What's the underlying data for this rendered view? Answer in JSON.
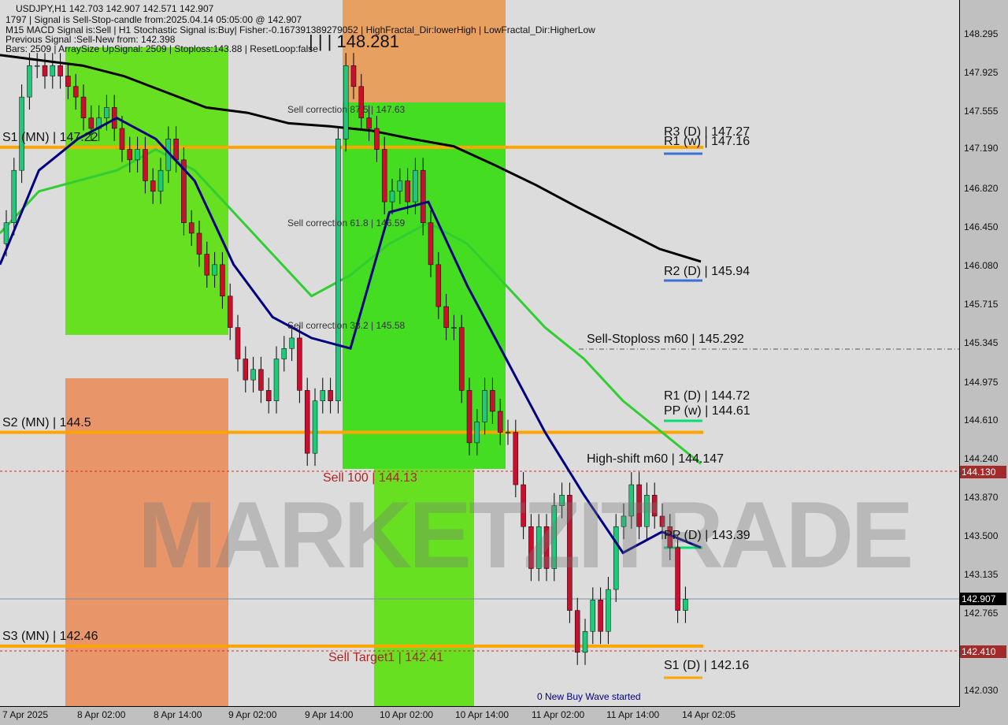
{
  "header": {
    "line1": "USDJPY,H1  142.703 142.907 142.571 142.907",
    "line2": "1797 | Signal is Sell-Stop-candle from:2025.04.14 05:05:00 @ 142.907",
    "line3": "M15 MACD Signal is:Sell | H1 Stochastic Signal is:Buy| Fisher:-0.167391389279052 | HighFractal_Dir:lowerHigh | LowFractal_Dir:HigherLow",
    "line4": "Previous Signal :Sell-New from: 142.398",
    "line5": "Bars: 2509 | ArraySize UpSignal: 2509 | Stoploss:143.88 | ResetLoop:false"
  },
  "watermark": "MARKETZITRADE",
  "labels": {
    "high": "| | | 148.281",
    "s1mn": "S1 (MN) | 147.22",
    "s2mn": "S2 (MN) | 144.5",
    "s3mn": "S3 (MN) | 142.46",
    "sc875": "Sell correction 87.5 | 147.63",
    "sc618": "Sell correction 61.8 | 146.59",
    "sc382": "Sell correction 38.2 | 145.58",
    "r3d": "R3 (D) | 147.27",
    "r1w": "R1 (w) | 147.16",
    "r2d": "R2 (D) | 145.94",
    "stoploss": "Sell-Stoploss m60 | 145.292",
    "r1d": "R1 (D) | 144.72",
    "ppw": "PP (w) | 144.61",
    "highshift": "High-shift m60 | 144.147",
    "sell100": "Sell 100 | 144.13",
    "ppd": "PP (D) | 143.39",
    "target": "Sell Target1 | 142.41",
    "s1d": "S1 (D) | 142.16",
    "newwave": "0 New Buy Wave started"
  },
  "y_axis": [
    "148.295",
    "147.925",
    "147.555",
    "147.190",
    "146.820",
    "146.450",
    "146.080",
    "145.715",
    "145.345",
    "144.975",
    "144.610",
    "144.240",
    "143.870",
    "143.500",
    "143.135",
    "142.765",
    "142.030"
  ],
  "price_tags": {
    "sell": "144.130",
    "current": "142.907",
    "target": "142.410"
  },
  "x_axis": [
    "7 Apr 2025",
    "8 Apr 02:00",
    "8 Apr 14:00",
    "9 Apr 02:00",
    "9 Apr 14:00",
    "10 Apr 02:00",
    "10 Apr 14:00",
    "11 Apr 02:00",
    "11 Apr 14:00",
    "14 Apr 02:05"
  ],
  "colors": {
    "bull": "#1ec97a",
    "bear": "#c8102e",
    "support": "#ffa500",
    "ma_long": "#000000",
    "ma_fast": "#000080",
    "ma_mid": "#32cd32"
  },
  "chart_data": {
    "type": "candlestick",
    "symbol": "USDJPY",
    "timeframe": "H1",
    "ylim": [
      142.03,
      148.295
    ],
    "closes": [
      146.5,
      147.0,
      147.7,
      148.0,
      148.0,
      147.9,
      148.0,
      147.9,
      147.8,
      147.7,
      147.5,
      147.4,
      147.5,
      147.6,
      147.4,
      147.2,
      147.1,
      147.2,
      146.9,
      146.8,
      147.0,
      147.3,
      147.1,
      146.5,
      146.4,
      146.2,
      146.0,
      146.1,
      145.8,
      145.5,
      145.2,
      145.0,
      145.1,
      144.9,
      144.8,
      145.2,
      145.3,
      145.4,
      144.9,
      144.3,
      144.8,
      144.9,
      144.8,
      147.3,
      148.0,
      147.8,
      147.5,
      147.4,
      147.2,
      146.7,
      146.8,
      146.9,
      146.7,
      147.0,
      146.5,
      146.1,
      145.7,
      145.5,
      145.5,
      144.9,
      144.4,
      144.6,
      144.9,
      144.7,
      144.5,
      144.5,
      144.0,
      143.6,
      143.2,
      143.6,
      143.2,
      143.8,
      143.9,
      142.8,
      142.4,
      142.6,
      142.9,
      142.6,
      143.0,
      143.6,
      143.7,
      144.0,
      143.6,
      143.9,
      143.7,
      143.6,
      143.4,
      142.8,
      142.907
    ],
    "ma_long": [
      148.1,
      148.05,
      148.0,
      147.9,
      147.75,
      147.6,
      147.55,
      147.45,
      147.42,
      147.38,
      147.3,
      147.23,
      147.05,
      146.86,
      146.65,
      146.45,
      146.25,
      146.13
    ],
    "ma_fast": [
      146.1,
      147.0,
      147.3,
      147.5,
      147.3,
      146.9,
      146.1,
      145.6,
      145.4,
      145.3,
      146.6,
      146.7,
      145.9,
      145.2,
      144.5,
      143.9,
      143.35,
      143.55,
      143.4
    ],
    "ma_mid": [
      146.4,
      146.8,
      146.9,
      147.0,
      147.2,
      147.0,
      146.6,
      146.2,
      145.8,
      146.0,
      146.3,
      146.5,
      146.3,
      145.9,
      145.5,
      145.2,
      144.8,
      144.5,
      144.2
    ]
  }
}
